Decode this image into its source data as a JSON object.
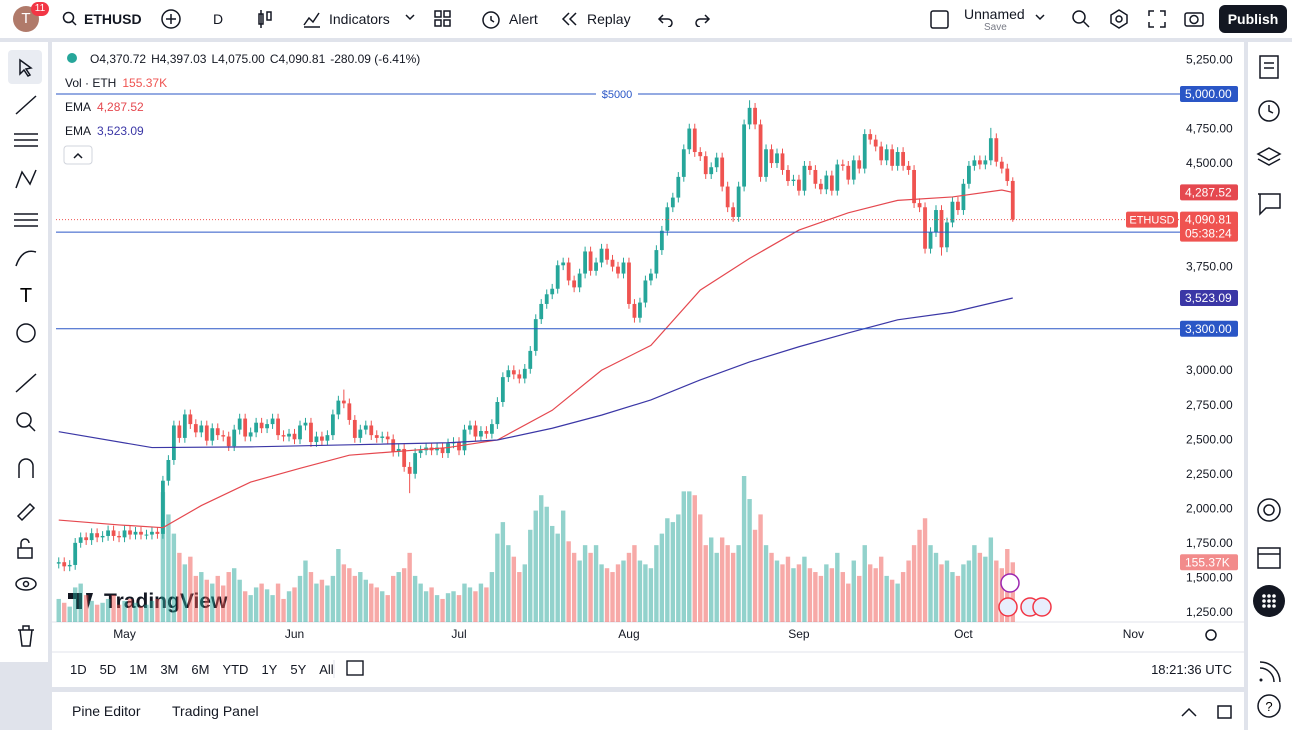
{
  "top_bar": {
    "avatar": "T",
    "notifications": "11",
    "symbol": "ETHUSD",
    "interval": "D",
    "indicators": "Indicators",
    "alert": "Alert",
    "replay": "Replay",
    "layout_name": "Unnamed",
    "layout_status": "Save",
    "publish": "Publish"
  },
  "chart_data": {
    "type": "candlestick",
    "legend": {
      "ohlc": [
        {
          "key": "O",
          "value": "4,370.72"
        },
        {
          "key": "H",
          "value": "4,397.03"
        },
        {
          "key": "L",
          "value": "4,075.00"
        },
        {
          "key": "C",
          "value": "4,090.81"
        }
      ],
      "change": "-280.09 (-6.41%)"
    },
    "up_color": "#26a69a",
    "down_color": "#ef5350",
    "open": [
      1600,
      1610,
      1580,
      1590,
      1750,
      1790,
      1770,
      1820,
      1790,
      1800,
      1840,
      1800,
      1790,
      1840,
      1810,
      1830,
      1810,
      1810,
      1830,
      1815,
      2200,
      2350,
      2600,
      2510,
      2680,
      2610,
      2550,
      2600,
      2490,
      2580,
      2530,
      2520,
      2450,
      2570,
      2650,
      2520,
      2550,
      2620,
      2580,
      2610,
      2650,
      2530,
      2520,
      2540,
      2500,
      2600,
      2620,
      2480,
      2520,
      2490,
      2530,
      2680,
      2780,
      2760,
      2640,
      2510,
      2570,
      2600,
      2530,
      2510,
      2520,
      2500,
      2410,
      2430,
      2300,
      2250,
      2400,
      2420,
      2440,
      2420,
      2440,
      2400,
      2470,
      2480,
      2420,
      2570,
      2600,
      2520,
      2560,
      2540,
      2610,
      2770,
      2950,
      3000,
      2970,
      2940,
      3010,
      3140,
      3370,
      3480,
      3550,
      3590,
      3760,
      3780,
      3650,
      3600,
      3700,
      3860,
      3720,
      3780,
      3880,
      3800,
      3750,
      3700,
      3780,
      3480,
      3380,
      3490,
      3650,
      3700,
      3870,
      4010,
      4180,
      4250,
      4400,
      4600,
      4750,
      4580,
      4550,
      4420,
      4470,
      4540,
      4330,
      4180,
      4110,
      4330,
      4780,
      4900,
      4780,
      4400,
      4600,
      4500,
      4570,
      4450,
      4370,
      4380,
      4300,
      4480,
      4450,
      4350,
      4310,
      4410,
      4300,
      4490,
      4480,
      4380,
      4520,
      4460,
      4710,
      4670,
      4620,
      4520,
      4600,
      4480,
      4580,
      4480,
      4450,
      4210,
      4180,
      3880,
      4000,
      4160,
      3890,
      4070,
      4220,
      4160,
      4350,
      4480,
      4520,
      4490,
      4520,
      4680,
      4510,
      4460,
      4370.72
    ],
    "high": [
      1645,
      1645,
      1625,
      1785,
      1825,
      1825,
      1855,
      1855,
      1835,
      1875,
      1875,
      1835,
      1875,
      1875,
      1865,
      1865,
      1845,
      1865,
      1865,
      2235,
      2385,
      2635,
      2635,
      2715,
      2715,
      2645,
      2635,
      2635,
      2615,
      2615,
      2565,
      2555,
      2605,
      2685,
      2685,
      2585,
      2655,
      2655,
      2645,
      2685,
      2685,
      2565,
      2575,
      2575,
      2635,
      2655,
      2655,
      2555,
      2555,
      2565,
      2715,
      2815,
      2860,
      2795,
      2675,
      2605,
      2635,
      2635,
      2565,
      2555,
      2555,
      2535,
      2465,
      2465,
      2335,
      2435,
      2455,
      2475,
      2475,
      2475,
      2475,
      2505,
      2515,
      2515,
      2605,
      2635,
      2635,
      2595,
      2595,
      2645,
      2805,
      2985,
      3035,
      3035,
      3005,
      3045,
      3175,
      3405,
      3515,
      3585,
      3625,
      3795,
      3815,
      3815,
      3685,
      3735,
      3895,
      3895,
      3815,
      3915,
      3915,
      3835,
      3785,
      3815,
      3815,
      3515,
      3525,
      3685,
      3735,
      3905,
      4045,
      4215,
      4285,
      4435,
      4635,
      4785,
      4785,
      4615,
      4585,
      4505,
      4575,
      4575,
      4365,
      4215,
      4365,
      4815,
      4955,
      4935,
      4815,
      4635,
      4635,
      4605,
      4605,
      4485,
      4415,
      4415,
      4515,
      4515,
      4485,
      4385,
      4445,
      4445,
      4525,
      4525,
      4515,
      4555,
      4555,
      4745,
      4745,
      4705,
      4655,
      4635,
      4635,
      4615,
      4615,
      4515,
      4485,
      4245,
      4215,
      4035,
      4195,
      4195,
      4105,
      4255,
      4255,
      4385,
      4515,
      4555,
      4555,
      4555,
      4755,
      4715,
      4545,
      4495,
      4397.03
    ],
    "low": [
      1565,
      1545,
      1545,
      1555,
      1715,
      1735,
      1735,
      1755,
      1755,
      1765,
      1765,
      1755,
      1755,
      1775,
      1775,
      1775,
      1775,
      1775,
      1780,
      1780,
      2165,
      2315,
      2475,
      2475,
      2575,
      2515,
      2515,
      2455,
      2455,
      2495,
      2485,
      2415,
      2415,
      2535,
      2485,
      2485,
      2515,
      2545,
      2545,
      2575,
      2495,
      2485,
      2485,
      2465,
      2465,
      2565,
      2445,
      2445,
      2455,
      2455,
      2495,
      2645,
      2725,
      2605,
      2475,
      2475,
      2535,
      2495,
      2475,
      2475,
      2465,
      2375,
      2375,
      2265,
      2110,
      2215,
      2365,
      2385,
      2385,
      2385,
      2365,
      2365,
      2435,
      2385,
      2385,
      2535,
      2485,
      2485,
      2505,
      2505,
      2575,
      2735,
      2915,
      2935,
      2905,
      2905,
      2975,
      3105,
      3335,
      3445,
      3515,
      3555,
      3725,
      3615,
      3565,
      3565,
      3665,
      3685,
      3685,
      3745,
      3765,
      3715,
      3665,
      3665,
      3445,
      3345,
      3345,
      3455,
      3615,
      3665,
      3835,
      3975,
      4145,
      4215,
      4365,
      4565,
      4545,
      4515,
      4385,
      4385,
      4435,
      4295,
      4145,
      4075,
      4075,
      4295,
      4745,
      4745,
      4365,
      4365,
      4465,
      4465,
      4415,
      4335,
      4335,
      4265,
      4265,
      4415,
      4315,
      4275,
      4275,
      4265,
      4265,
      4445,
      4345,
      4345,
      4425,
      4425,
      4635,
      4585,
      4485,
      4485,
      4445,
      4445,
      4445,
      4415,
      4175,
      4145,
      3845,
      3845,
      3965,
      3830,
      3855,
      4035,
      4125,
      4125,
      4315,
      4445,
      4455,
      4455,
      4485,
      4475,
      4425,
      4335,
      4075
    ],
    "close": [
      1610,
      1580,
      1590,
      1750,
      1790,
      1770,
      1820,
      1790,
      1800,
      1840,
      1800,
      1790,
      1840,
      1810,
      1830,
      1810,
      1810,
      1830,
      1815,
      2200,
      2350,
      2600,
      2510,
      2680,
      2610,
      2550,
      2600,
      2490,
      2580,
      2530,
      2520,
      2450,
      2570,
      2650,
      2520,
      2550,
      2620,
      2580,
      2610,
      2650,
      2530,
      2520,
      2540,
      2500,
      2600,
      2620,
      2480,
      2520,
      2490,
      2530,
      2680,
      2780,
      2760,
      2640,
      2510,
      2570,
      2600,
      2530,
      2510,
      2520,
      2500,
      2410,
      2430,
      2300,
      2250,
      2400,
      2420,
      2440,
      2420,
      2440,
      2400,
      2470,
      2480,
      2420,
      2570,
      2600,
      2520,
      2560,
      2540,
      2610,
      2770,
      2950,
      3000,
      2970,
      2940,
      3010,
      3140,
      3370,
      3480,
      3550,
      3590,
      3760,
      3780,
      3650,
      3600,
      3700,
      3860,
      3720,
      3780,
      3880,
      3800,
      3750,
      3700,
      3780,
      3480,
      3380,
      3490,
      3650,
      3700,
      3870,
      4010,
      4180,
      4250,
      4400,
      4600,
      4750,
      4580,
      4550,
      4420,
      4470,
      4540,
      4330,
      4180,
      4110,
      4330,
      4780,
      4900,
      4780,
      4400,
      4600,
      4500,
      4570,
      4450,
      4370,
      4380,
      4300,
      4480,
      4450,
      4350,
      4310,
      4410,
      4300,
      4490,
      4480,
      4380,
      4520,
      4460,
      4710,
      4670,
      4620,
      4520,
      4600,
      4480,
      4580,
      4480,
      4450,
      4210,
      4180,
      3880,
      4000,
      4160,
      3890,
      4070,
      4220,
      4160,
      4350,
      4480,
      4520,
      4490,
      4520,
      4680,
      4510,
      4460,
      4370,
      4090.81
    ],
    "volume": {
      "name": "Vol · ETH",
      "last_label": "155.37K",
      "values": [
        60,
        50,
        40,
        90,
        100,
        70,
        55,
        45,
        50,
        60,
        70,
        45,
        55,
        60,
        50,
        40,
        45,
        55,
        60,
        338,
        280,
        230,
        180,
        150,
        170,
        120,
        130,
        110,
        100,
        120,
        95,
        130,
        140,
        110,
        80,
        70,
        90,
        100,
        85,
        70,
        100,
        60,
        80,
        90,
        120,
        160,
        130,
        100,
        110,
        95,
        120,
        190,
        150,
        140,
        120,
        130,
        110,
        100,
        90,
        80,
        70,
        120,
        130,
        140,
        180,
        120,
        100,
        80,
        90,
        70,
        60,
        75,
        80,
        70,
        100,
        90,
        80,
        100,
        90,
        130,
        230,
        260,
        200,
        170,
        130,
        150,
        240,
        290,
        330,
        300,
        250,
        230,
        290,
        210,
        180,
        160,
        200,
        180,
        200,
        150,
        140,
        130,
        150,
        160,
        180,
        200,
        160,
        150,
        140,
        200,
        230,
        270,
        260,
        280,
        340,
        340,
        330,
        280,
        200,
        220,
        180,
        220,
        200,
        180,
        200,
        380,
        320,
        240,
        280,
        200,
        180,
        160,
        150,
        170,
        140,
        150,
        170,
        140,
        130,
        120,
        150,
        140,
        180,
        130,
        100,
        160,
        120,
        200,
        150,
        140,
        170,
        120,
        110,
        100,
        130,
        160,
        200,
        240,
        270,
        200,
        180,
        150,
        160,
        130,
        120,
        150,
        160,
        200,
        180,
        170,
        220,
        160,
        140,
        190,
        155.37
      ]
    },
    "ema": [
      {
        "name": "EMA",
        "label": "4,287.52",
        "color": "#e5484f",
        "x": [
          0,
          11,
          19,
          26,
          35,
          44,
          53,
          71,
          80,
          90,
          99,
          108,
          117,
          126,
          135,
          144,
          153,
          163,
          172,
          174
        ],
        "values": [
          1915,
          1880,
          1860,
          2020,
          2190,
          2290,
          2385,
          2440,
          2495,
          2710,
          3000,
          3180,
          3580,
          3810,
          4015,
          4140,
          4230,
          4255,
          4305,
          4287.52
        ]
      },
      {
        "name": "EMA",
        "label": "3,523.09",
        "color": "#3b37a6",
        "x": [
          0,
          17,
          35,
          53,
          71,
          80,
          90,
          99,
          108,
          117,
          126,
          135,
          144,
          153,
          163,
          174
        ],
        "values": [
          2555,
          2440,
          2445,
          2460,
          2475,
          2495,
          2580,
          2675,
          2785,
          2930,
          3060,
          3170,
          3270,
          3365,
          3420,
          3523.09
        ]
      }
    ],
    "levels": [
      {
        "value": 5000,
        "label": "5,000.00",
        "text": "$5000"
      },
      {
        "value": 4000,
        "label": "4,000.00"
      },
      {
        "value": 3300,
        "label": "3,300.00"
      }
    ],
    "last_price": {
      "label": "4,090.81",
      "countdown": "05:38:24"
    },
    "xlim": [
      -0.5,
      204.5
    ],
    "xticks": [
      {
        "value": 12,
        "label": "May"
      },
      {
        "value": 43,
        "label": "Jun"
      },
      {
        "value": 73,
        "label": "Jul"
      },
      {
        "value": 104,
        "label": "Aug"
      },
      {
        "value": 135,
        "label": "Sep"
      },
      {
        "value": 165,
        "label": "Oct"
      },
      {
        "value": 196,
        "label": "Nov"
      }
    ],
    "ylim": [
      1177,
      5355
    ],
    "yticks": [
      {
        "value": 5250,
        "label": "5,250.00"
      },
      {
        "value": 4750,
        "label": "4,750.00"
      },
      {
        "value": 4500,
        "label": "4,500.00"
      },
      {
        "value": 3750,
        "label": "3,750.00"
      },
      {
        "value": 3000,
        "label": "3,000.00"
      },
      {
        "value": 2750,
        "label": "2,750.00"
      },
      {
        "value": 2500,
        "label": "2,500.00"
      },
      {
        "value": 2250,
        "label": "2,250.00"
      },
      {
        "value": 2000,
        "label": "2,000.00"
      },
      {
        "value": 1750,
        "label": "1,750.00"
      },
      {
        "value": 1500,
        "label": "1,500.00"
      },
      {
        "value": 1250,
        "label": "1,250.00"
      }
    ],
    "grid": false
  },
  "watermark": "TradingView",
  "bottom_bar": {
    "ranges": [
      "1D",
      "5D",
      "1M",
      "3M",
      "6M",
      "YTD",
      "1Y",
      "5Y",
      "All"
    ],
    "clock": "18:21:36 UTC"
  },
  "panel": {
    "tabs": [
      "Pine Editor",
      "Trading Panel"
    ]
  }
}
